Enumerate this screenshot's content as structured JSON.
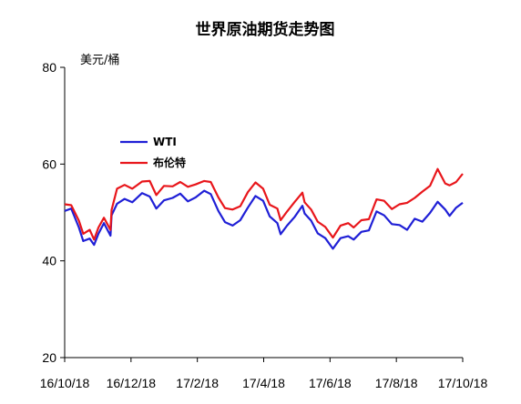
{
  "chart_data": {
    "type": "line",
    "title": "世界原油期货走势图",
    "ylabel": "美元/桶",
    "xlabel": "",
    "ylim": [
      20,
      80
    ],
    "yticks": [
      20,
      40,
      60,
      80
    ],
    "x_ticks": [
      "16/10/18",
      "16/12/18",
      "17/2/18",
      "17/4/18",
      "17/6/18",
      "17/8/18",
      "17/10/18"
    ],
    "xlim": [
      "2016-10-18",
      "2017-10-18"
    ],
    "legend_position": "upper-left-inside",
    "grid": false,
    "series": [
      {
        "name": "WTI",
        "color": "#1f1fd6",
        "points": [
          [
            "2016-10-18",
            50.3
          ],
          [
            "2016-10-24",
            50.8
          ],
          [
            "2016-10-31",
            46.9
          ],
          [
            "2016-11-04",
            44.1
          ],
          [
            "2016-11-10",
            44.6
          ],
          [
            "2016-11-14",
            43.3
          ],
          [
            "2016-11-18",
            45.6
          ],
          [
            "2016-11-23",
            47.8
          ],
          [
            "2016-11-29",
            45.2
          ],
          [
            "2016-11-30",
            49.4
          ],
          [
            "2016-12-05",
            51.8
          ],
          [
            "2016-12-12",
            52.8
          ],
          [
            "2016-12-19",
            52.1
          ],
          [
            "2016-12-28",
            54.0
          ],
          [
            "2017-01-04",
            53.3
          ],
          [
            "2017-01-10",
            50.8
          ],
          [
            "2017-01-17",
            52.5
          ],
          [
            "2017-01-25",
            53.0
          ],
          [
            "2017-02-01",
            53.9
          ],
          [
            "2017-02-08",
            52.3
          ],
          [
            "2017-02-15",
            53.1
          ],
          [
            "2017-02-23",
            54.5
          ],
          [
            "2017-03-01",
            53.8
          ],
          [
            "2017-03-08",
            50.3
          ],
          [
            "2017-03-14",
            48.0
          ],
          [
            "2017-03-21",
            47.3
          ],
          [
            "2017-03-28",
            48.4
          ],
          [
            "2017-04-04",
            51.0
          ],
          [
            "2017-04-11",
            53.4
          ],
          [
            "2017-04-18",
            52.4
          ],
          [
            "2017-04-24",
            49.2
          ],
          [
            "2017-05-01",
            47.8
          ],
          [
            "2017-05-04",
            45.5
          ],
          [
            "2017-05-10",
            47.3
          ],
          [
            "2017-05-17",
            49.1
          ],
          [
            "2017-05-24",
            51.4
          ],
          [
            "2017-05-26",
            49.8
          ],
          [
            "2017-06-01",
            48.3
          ],
          [
            "2017-06-07",
            45.7
          ],
          [
            "2017-06-14",
            44.7
          ],
          [
            "2017-06-21",
            42.5
          ],
          [
            "2017-06-28",
            44.7
          ],
          [
            "2017-07-05",
            45.1
          ],
          [
            "2017-07-10",
            44.4
          ],
          [
            "2017-07-17",
            46.0
          ],
          [
            "2017-07-24",
            46.3
          ],
          [
            "2017-07-31",
            50.2
          ],
          [
            "2017-08-07",
            49.4
          ],
          [
            "2017-08-14",
            47.6
          ],
          [
            "2017-08-21",
            47.4
          ],
          [
            "2017-08-28",
            46.4
          ],
          [
            "2017-09-04",
            48.7
          ],
          [
            "2017-09-11",
            48.1
          ],
          [
            "2017-09-18",
            49.9
          ],
          [
            "2017-09-25",
            52.2
          ],
          [
            "2017-10-02",
            50.6
          ],
          [
            "2017-10-06",
            49.3
          ],
          [
            "2017-10-12",
            51.0
          ],
          [
            "2017-10-18",
            52.0
          ]
        ]
      },
      {
        "name": "布伦特",
        "color": "#e8161b",
        "points": [
          [
            "2016-10-18",
            51.7
          ],
          [
            "2016-10-24",
            51.5
          ],
          [
            "2016-10-31",
            48.3
          ],
          [
            "2016-11-04",
            45.6
          ],
          [
            "2016-11-10",
            46.4
          ],
          [
            "2016-11-14",
            44.4
          ],
          [
            "2016-11-18",
            46.9
          ],
          [
            "2016-11-23",
            48.9
          ],
          [
            "2016-11-29",
            46.4
          ],
          [
            "2016-11-30",
            50.5
          ],
          [
            "2016-12-05",
            54.9
          ],
          [
            "2016-12-12",
            55.7
          ],
          [
            "2016-12-19",
            54.9
          ],
          [
            "2016-12-28",
            56.4
          ],
          [
            "2017-01-04",
            56.5
          ],
          [
            "2017-01-10",
            53.6
          ],
          [
            "2017-01-17",
            55.5
          ],
          [
            "2017-01-25",
            55.4
          ],
          [
            "2017-02-01",
            56.3
          ],
          [
            "2017-02-08",
            55.3
          ],
          [
            "2017-02-15",
            55.8
          ],
          [
            "2017-02-23",
            56.5
          ],
          [
            "2017-03-01",
            56.3
          ],
          [
            "2017-03-08",
            53.1
          ],
          [
            "2017-03-14",
            50.9
          ],
          [
            "2017-03-21",
            50.6
          ],
          [
            "2017-03-28",
            51.3
          ],
          [
            "2017-04-04",
            54.2
          ],
          [
            "2017-04-11",
            56.2
          ],
          [
            "2017-04-18",
            54.9
          ],
          [
            "2017-04-24",
            51.6
          ],
          [
            "2017-05-01",
            50.8
          ],
          [
            "2017-05-04",
            48.4
          ],
          [
            "2017-05-10",
            50.2
          ],
          [
            "2017-05-17",
            52.2
          ],
          [
            "2017-05-24",
            54.1
          ],
          [
            "2017-05-26",
            52.1
          ],
          [
            "2017-06-01",
            50.6
          ],
          [
            "2017-06-07",
            48.1
          ],
          [
            "2017-06-14",
            47.0
          ],
          [
            "2017-06-21",
            44.8
          ],
          [
            "2017-06-28",
            47.3
          ],
          [
            "2017-07-05",
            47.8
          ],
          [
            "2017-07-10",
            46.9
          ],
          [
            "2017-07-17",
            48.4
          ],
          [
            "2017-07-24",
            48.6
          ],
          [
            "2017-07-31",
            52.7
          ],
          [
            "2017-08-07",
            52.4
          ],
          [
            "2017-08-14",
            50.7
          ],
          [
            "2017-08-21",
            51.7
          ],
          [
            "2017-08-28",
            52.0
          ],
          [
            "2017-09-04",
            53.0
          ],
          [
            "2017-09-11",
            54.3
          ],
          [
            "2017-09-18",
            55.5
          ],
          [
            "2017-09-25",
            59.0
          ],
          [
            "2017-10-02",
            56.0
          ],
          [
            "2017-10-06",
            55.6
          ],
          [
            "2017-10-12",
            56.3
          ],
          [
            "2017-10-18",
            58.0
          ]
        ]
      }
    ]
  }
}
